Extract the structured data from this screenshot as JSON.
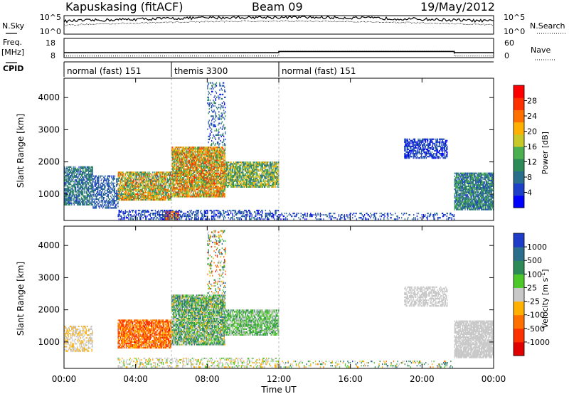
{
  "header": {
    "station": "Kapuskasing (fitACF)",
    "beam": "Beam 09",
    "date": "19/May/2012"
  },
  "noise_panel": {
    "left_label": "N.Sky",
    "right_label": "N.Search",
    "left_ticks": [
      "10^5",
      "10^0"
    ],
    "right_ticks": [
      "10^5",
      "10^0"
    ]
  },
  "freq_panel": {
    "left_label_line1": "Freq.",
    "left_label_line2": "[MHz]",
    "right_label": "Nave",
    "left_ticks": [
      "18",
      "8"
    ],
    "right_ticks": [
      "60",
      "0"
    ],
    "freq_levels_mhz": [
      [
        0,
        10.6
      ],
      [
        12.0,
        11.2
      ],
      [
        21.8,
        10.6
      ],
      [
        24,
        10.6
      ]
    ],
    "nave_levels": [
      [
        0,
        5
      ],
      [
        12.0,
        20
      ],
      [
        21.8,
        5
      ],
      [
        24,
        5
      ]
    ]
  },
  "cpid_panel": {
    "label": "CPID",
    "segments": [
      {
        "text": "normal (fast) 151",
        "start_ut": 0
      },
      {
        "text": "themis 3300",
        "start_ut": 6.0
      },
      {
        "text": "normal (fast) 151",
        "start_ut": 12.0
      }
    ]
  },
  "x_axis": {
    "label": "Time UT",
    "range_ut": [
      0,
      24
    ],
    "ticks": [
      {
        "ut": 0,
        "label": "00:00"
      },
      {
        "ut": 4,
        "label": "04:00"
      },
      {
        "ut": 8,
        "label": "08:00"
      },
      {
        "ut": 12,
        "label": "12:00"
      },
      {
        "ut": 16,
        "label": "16:00"
      },
      {
        "ut": 20,
        "label": "20:00"
      },
      {
        "ut": 24,
        "label": "00:00"
      }
    ]
  },
  "chart_data": [
    {
      "type": "heatmap",
      "name": "power",
      "ylabel": "Slant Range [km]",
      "ylim": [
        180,
        4600
      ],
      "xlim": [
        0,
        24
      ],
      "yticks": [
        1000,
        2000,
        3000,
        4000
      ],
      "colorbar_label": "Power [dB]",
      "colorbar_ticks": [
        "4",
        "8",
        "12",
        "16",
        "20",
        "24",
        "28"
      ],
      "colorbar_colors": [
        "#0000ff",
        "#1e40c8",
        "#2a6e8c",
        "#2e8b57",
        "#4caf50",
        "#c8c828",
        "#ffb000",
        "#ff7000",
        "#ff3000",
        "#ff0000"
      ],
      "regions": [
        {
          "ut": [
            0.0,
            1.6
          ],
          "range_km": [
            650,
            1850
          ],
          "level": [
            0.15,
            0.4
          ],
          "density": 0.7
        },
        {
          "ut": [
            1.6,
            3.0
          ],
          "range_km": [
            550,
            1550
          ],
          "level": [
            0.1,
            0.3
          ],
          "density": 0.55
        },
        {
          "ut": [
            3.0,
            6.0
          ],
          "range_km": [
            800,
            1700
          ],
          "level": [
            0.25,
            0.85
          ],
          "density": 0.8
        },
        {
          "ut": [
            6.0,
            9.0
          ],
          "range_km": [
            900,
            2450
          ],
          "level": [
            0.3,
            0.9
          ],
          "density": 0.85
        },
        {
          "ut": [
            9.0,
            12.0
          ],
          "range_km": [
            1200,
            2000
          ],
          "level": [
            0.2,
            0.7
          ],
          "density": 0.8
        },
        {
          "ut": [
            5.6,
            6.4
          ],
          "range_km": [
            200,
            450
          ],
          "level": [
            0.5,
            1.0
          ],
          "density": 0.9
        },
        {
          "ut": [
            3.0,
            12.0
          ],
          "range_km": [
            200,
            500
          ],
          "level": [
            0.05,
            0.3
          ],
          "density": 0.45
        },
        {
          "ut": [
            12.0,
            21.8
          ],
          "range_km": [
            200,
            420
          ],
          "level": [
            0.05,
            0.3
          ],
          "density": 0.25
        },
        {
          "ut": [
            19.0,
            21.4
          ],
          "range_km": [
            2100,
            2700
          ],
          "level": [
            0.05,
            0.25
          ],
          "density": 0.65
        },
        {
          "ut": [
            21.8,
            24.0
          ],
          "range_km": [
            500,
            1650
          ],
          "level": [
            0.1,
            0.5
          ],
          "density": 0.85
        },
        {
          "ut": [
            8.0,
            9.0
          ],
          "range_km": [
            2500,
            4450
          ],
          "level": [
            0.05,
            0.4
          ],
          "density": 0.25
        }
      ]
    },
    {
      "type": "heatmap",
      "name": "velocity",
      "ylabel": "Slant Range [km]",
      "ylim": [
        180,
        4600
      ],
      "xlim": [
        0,
        24
      ],
      "yticks": [
        1000,
        2000,
        3000,
        4000
      ],
      "colorbar_label": "Velocity [m s^-1]",
      "colorbar_ticks": [
        "1000",
        "500",
        "100",
        "25",
        "-25",
        "-100",
        "-500",
        "-1000"
      ],
      "colorbar_colors": [
        "#1e3cc8",
        "#2a6e8c",
        "#2e8b57",
        "#4cc828",
        "#c8c8c8",
        "#ffb000",
        "#ff7000",
        "#ff3000",
        "#e00000"
      ],
      "regions": [
        {
          "ut": [
            0.0,
            1.6
          ],
          "range_km": [
            700,
            1500
          ],
          "level": [
            0.38,
            0.55
          ],
          "density": 0.5
        },
        {
          "ut": [
            3.0,
            6.0
          ],
          "range_km": [
            800,
            1700
          ],
          "level": [
            0.1,
            0.45
          ],
          "density": 0.8
        },
        {
          "ut": [
            6.0,
            9.0
          ],
          "range_km": [
            900,
            2450
          ],
          "level": [
            0.4,
            0.85
          ],
          "density": 0.85
        },
        {
          "ut": [
            9.0,
            12.0
          ],
          "range_km": [
            1200,
            2000
          ],
          "level": [
            0.45,
            0.75
          ],
          "density": 0.8
        },
        {
          "ut": [
            3.0,
            12.0
          ],
          "range_km": [
            200,
            500
          ],
          "level": [
            0.4,
            0.6
          ],
          "density": 0.35
        },
        {
          "ut": [
            12.0,
            21.8
          ],
          "range_km": [
            200,
            420
          ],
          "level": [
            0.3,
            0.9
          ],
          "density": 0.2
        },
        {
          "ut": [
            19.0,
            21.4
          ],
          "range_km": [
            2100,
            2700
          ],
          "level": [
            0.48,
            0.52
          ],
          "density": 0.6
        },
        {
          "ut": [
            21.8,
            24.0
          ],
          "range_km": [
            500,
            1650
          ],
          "level": [
            0.48,
            0.55
          ],
          "density": 0.85
        },
        {
          "ut": [
            8.0,
            9.0
          ],
          "range_km": [
            2500,
            4450
          ],
          "level": [
            0.1,
            0.9
          ],
          "density": 0.2
        }
      ]
    }
  ]
}
